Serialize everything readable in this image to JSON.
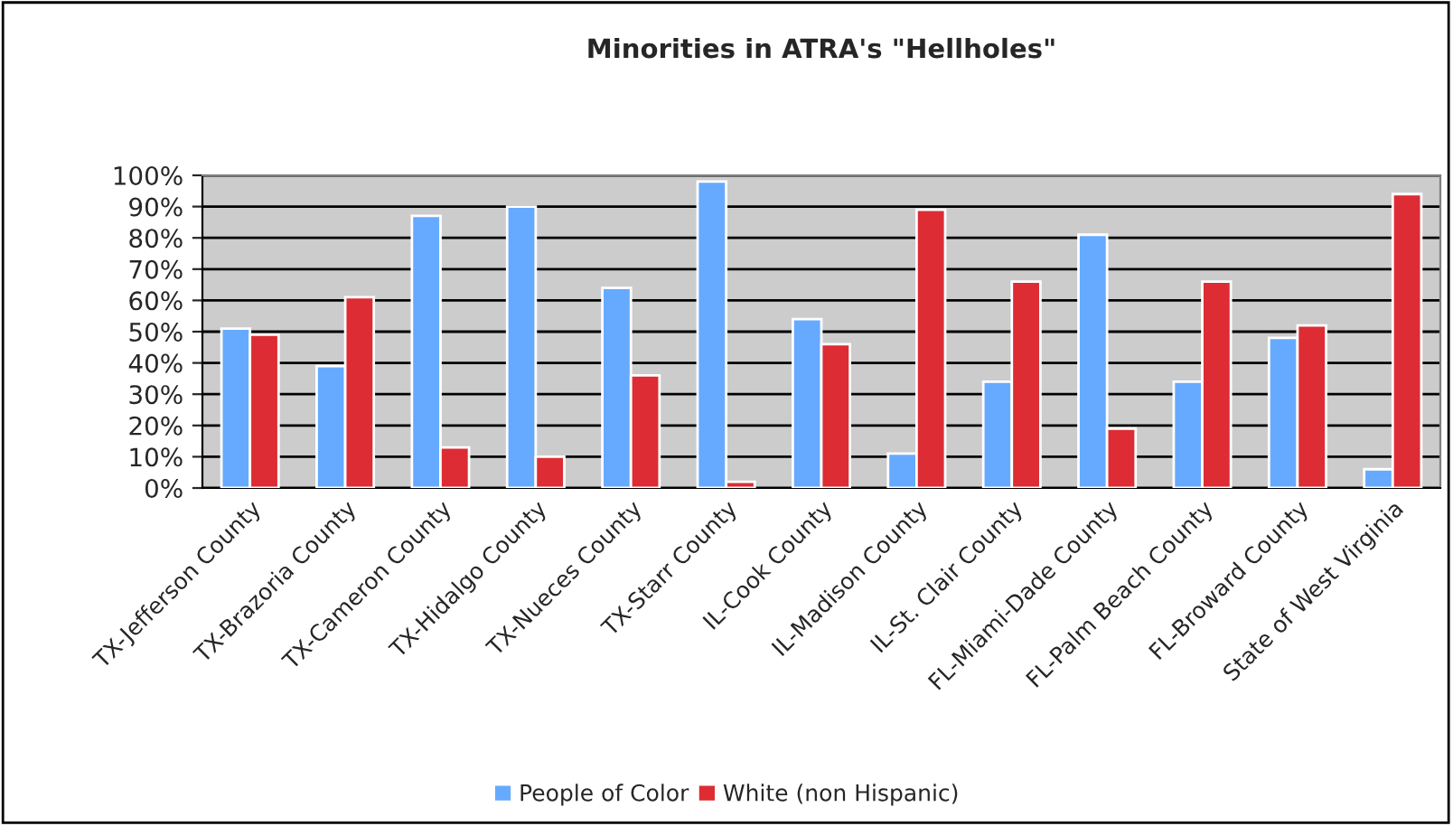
{
  "chart_data": {
    "type": "bar",
    "title": "Minorities in ATRA's \"Hellholes\"",
    "categories": [
      "TX-Jefferson County",
      "TX-Brazoria County",
      "TX-Cameron County",
      "TX-Hidalgo County",
      "TX-Nueces County",
      "TX-Starr County",
      "IL-Cook County",
      "IL-Madison County",
      "IL-St. Clair County",
      "FL-Miami-Dade County",
      "FL-Palm Beach County",
      "FL-Broward County",
      "State of West Virginia"
    ],
    "series": [
      {
        "name": "People of Color",
        "color": "#66aaff",
        "values": [
          51,
          39,
          87,
          90,
          64,
          98,
          54,
          11,
          34,
          81,
          34,
          48,
          6
        ]
      },
      {
        "name": "White (non Hispanic)",
        "color": "#dd2c33",
        "values": [
          49,
          61,
          13,
          10,
          36,
          2,
          46,
          89,
          66,
          19,
          66,
          52,
          94
        ]
      }
    ],
    "ylim": [
      0,
      100
    ],
    "yticks": [
      {
        "value": 0,
        "label": "0%"
      },
      {
        "value": 10,
        "label": "10%"
      },
      {
        "value": 20,
        "label": "20%"
      },
      {
        "value": 30,
        "label": "30%"
      },
      {
        "value": 40,
        "label": "40%"
      },
      {
        "value": 50,
        "label": "50%"
      },
      {
        "value": 60,
        "label": "60%"
      },
      {
        "value": 70,
        "label": "70%"
      },
      {
        "value": 80,
        "label": "80%"
      },
      {
        "value": 90,
        "label": "90%"
      },
      {
        "value": 100,
        "label": "100%"
      }
    ],
    "grid": "y",
    "legend": "bottom"
  }
}
